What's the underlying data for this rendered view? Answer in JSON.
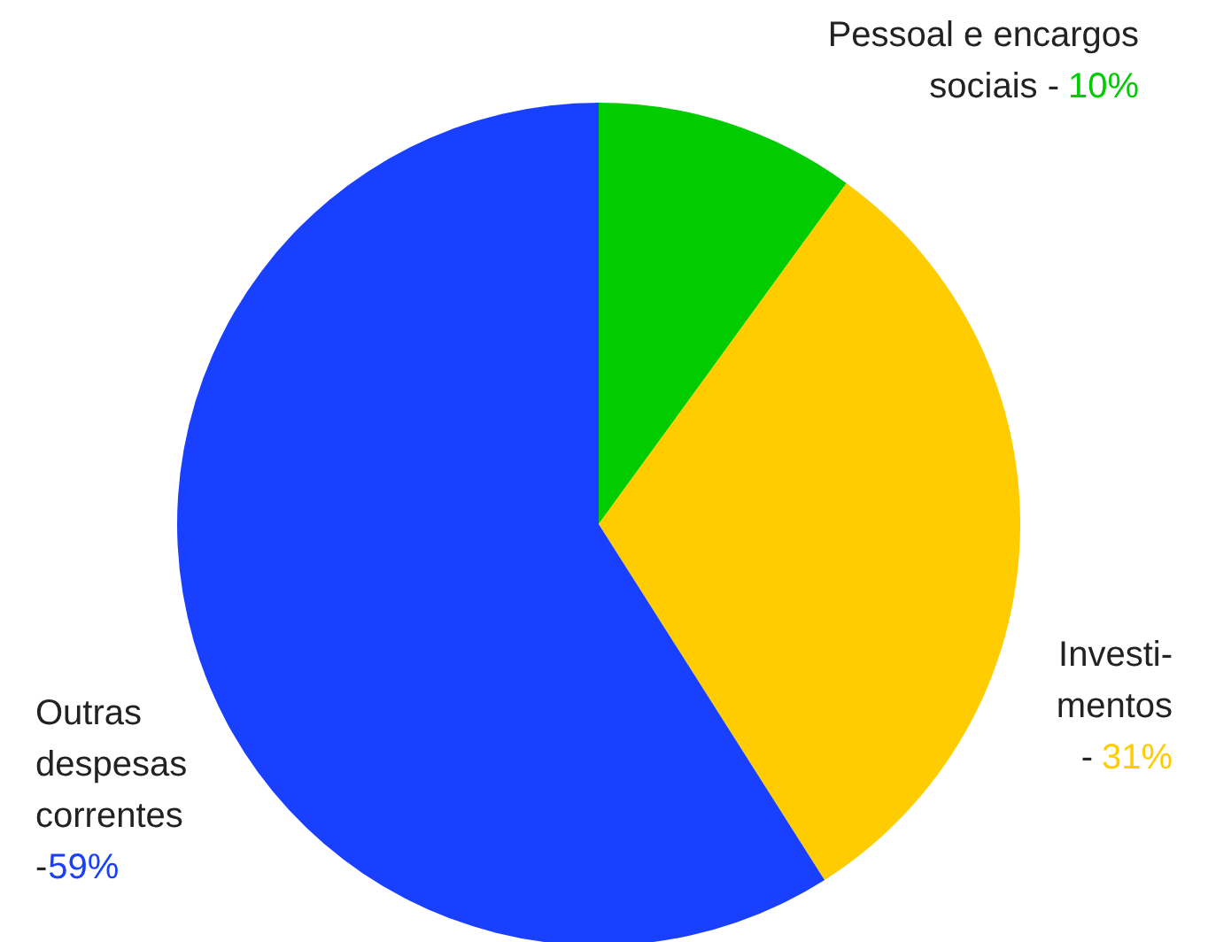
{
  "chart_data": {
    "type": "pie",
    "categories": [
      "Pessoal e encargos\nsociais -",
      "Investi-\nmentos\n-",
      "Outras\ndespesas\ncorrentes\n-"
    ],
    "values": [
      10,
      31,
      59
    ],
    "value_labels": [
      "10%",
      "31%",
      "59%"
    ],
    "colors": [
      "#00cc00",
      "#ffcc00",
      "#1a40ff"
    ]
  }
}
